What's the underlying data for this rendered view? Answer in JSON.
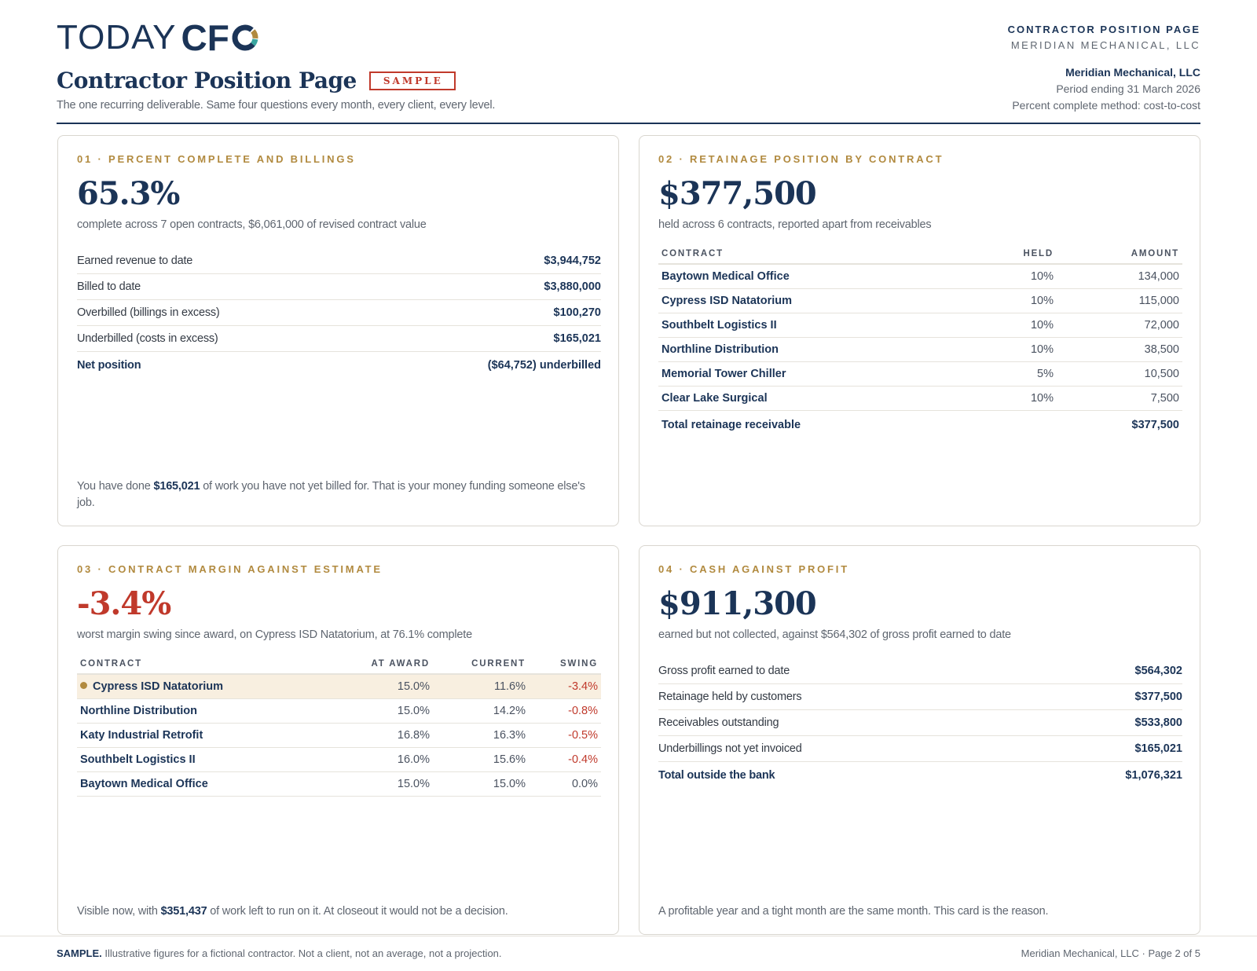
{
  "header": {
    "logo_left": "TODAY",
    "logo_right": "CF",
    "title": "Contractor Position Page",
    "badge": "SAMPLE",
    "tagline": "The one recurring deliverable. Same four questions every month, every client, every level.",
    "right_line1": "CONTRACTOR POSITION PAGE",
    "right_line2": "MERIDIAN MECHANICAL, LLC",
    "client_name": "Meridian Mechanical, LLC",
    "period": "Period ending 31 March 2026",
    "method": "Percent complete method: cost-to-cost"
  },
  "colors": {
    "navy": "#1b3457",
    "gold": "#b18a3f",
    "red": "#c0392b",
    "teal": "#3aa6a0"
  },
  "card1": {
    "eyebrow": "01 · PERCENT COMPLETE AND BILLINGS",
    "big": "65.3%",
    "sub": "complete across 7 open contracts, $6,061,000 of revised contract value",
    "rows": [
      {
        "label": "Earned revenue to date",
        "value": "$3,944,752"
      },
      {
        "label": "Billed to date",
        "value": "$3,880,000"
      },
      {
        "label": "Overbilled (billings in excess)",
        "value": "$100,270"
      },
      {
        "label": "Underbilled (costs in excess)",
        "value": "$165,021"
      },
      {
        "label": "Net position",
        "value": "($64,752) underbilled"
      }
    ],
    "note_pre": "You have done ",
    "note_bold": "$165,021",
    "note_post": " of work you have not yet billed for. That is your money funding someone else's job."
  },
  "card2": {
    "eyebrow": "02 · RETAINAGE POSITION BY CONTRACT",
    "big": "$377,500",
    "sub": "held across 6 contracts, reported apart from receivables",
    "columns": [
      "CONTRACT",
      "HELD",
      "AMOUNT"
    ],
    "rows": [
      {
        "contract": "Baytown Medical Office",
        "held": "10%",
        "amount": "134,000"
      },
      {
        "contract": "Cypress ISD Natatorium",
        "held": "10%",
        "amount": "115,000"
      },
      {
        "contract": "Southbelt Logistics II",
        "held": "10%",
        "amount": "72,000"
      },
      {
        "contract": "Northline Distribution",
        "held": "10%",
        "amount": "38,500"
      },
      {
        "contract": "Memorial Tower Chiller",
        "held": "5%",
        "amount": "10,500"
      },
      {
        "contract": "Clear Lake Surgical",
        "held": "10%",
        "amount": "7,500"
      }
    ],
    "total_label": "Total retainage receivable",
    "total_value": "$377,500"
  },
  "card3": {
    "eyebrow": "03 · CONTRACT MARGIN AGAINST ESTIMATE",
    "big": "-3.4%",
    "sub": "worst margin swing since award, on Cypress ISD Natatorium, at 76.1% complete",
    "columns": [
      "CONTRACT",
      "AT AWARD",
      "CURRENT",
      "SWING"
    ],
    "rows": [
      {
        "contract": "Cypress ISD Natatorium",
        "award": "15.0%",
        "current": "11.6%",
        "swing": "-3.4%"
      },
      {
        "contract": "Northline Distribution",
        "award": "15.0%",
        "current": "14.2%",
        "swing": "-0.8%"
      },
      {
        "contract": "Katy Industrial Retrofit",
        "award": "16.8%",
        "current": "16.3%",
        "swing": "-0.5%"
      },
      {
        "contract": "Southbelt Logistics II",
        "award": "16.0%",
        "current": "15.6%",
        "swing": "-0.4%"
      },
      {
        "contract": "Baytown Medical Office",
        "award": "15.0%",
        "current": "15.0%",
        "swing": "0.0%"
      }
    ],
    "note_pre": "Visible now, with ",
    "note_bold": "$351,437",
    "note_post": " of work left to run on it. At closeout it would not be a decision."
  },
  "card4": {
    "eyebrow": "04 · CASH AGAINST PROFIT",
    "big": "$911,300",
    "sub": "earned but not collected, against $564,302 of gross profit earned to date",
    "rows": [
      {
        "label": "Gross profit earned to date",
        "value": "$564,302"
      },
      {
        "label": "Retainage held by customers",
        "value": "$377,500"
      },
      {
        "label": "Receivables outstanding",
        "value": "$533,800"
      },
      {
        "label": "Underbillings not yet invoiced",
        "value": "$165,021"
      },
      {
        "label": "Total outside the bank",
        "value": "$1,076,321"
      }
    ],
    "note": "A profitable year and a tight month are the same month. This card is the reason."
  },
  "footer": {
    "left_bold": "SAMPLE.",
    "left_text": " Illustrative figures for a fictional contractor. Not a client, not an average, not a projection.",
    "right": "Meridian Mechanical, LLC · Page 2 of 5"
  }
}
